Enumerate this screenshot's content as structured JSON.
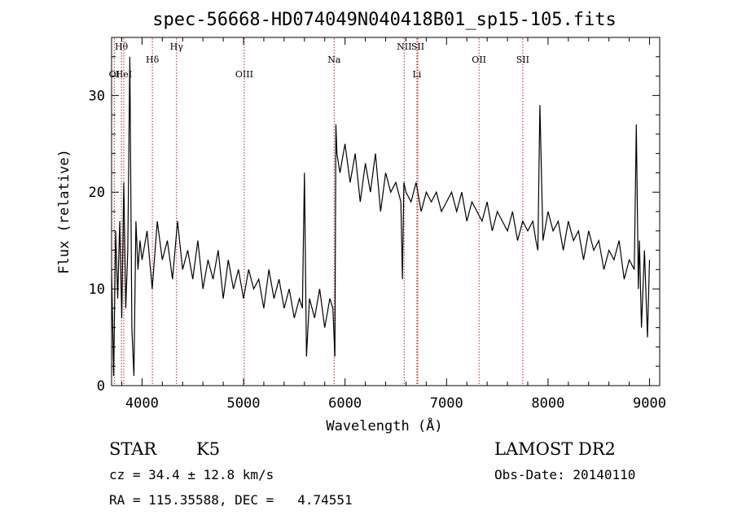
{
  "chart_data": {
    "type": "line",
    "title": "spec-56668-HD074049N040418B01_sp15-105.fits",
    "xlabel": "Wavelength (Å)",
    "ylabel": "Flux (relative)",
    "xlim": [
      3700,
      9100
    ],
    "ylim": [
      0,
      36
    ],
    "xticks": [
      4000,
      5000,
      6000,
      7000,
      8000,
      9000
    ],
    "yticks": [
      0,
      10,
      20,
      30
    ],
    "grid": false,
    "series": [
      {
        "x": [
          3700,
          3720,
          3740,
          3760,
          3780,
          3800,
          3820,
          3840,
          3860,
          3880,
          3900,
          3920,
          3940,
          3960,
          3980,
          4000,
          4050,
          4100,
          4150,
          4200,
          4250,
          4300,
          4350,
          4400,
          4450,
          4500,
          4550,
          4600,
          4650,
          4700,
          4750,
          4800,
          4850,
          4900,
          4950,
          5000,
          5050,
          5100,
          5150,
          5200,
          5250,
          5300,
          5350,
          5400,
          5450,
          5500,
          5550,
          5580,
          5600,
          5620,
          5650,
          5700,
          5750,
          5800,
          5850,
          5880,
          5900,
          5910,
          5920,
          5950,
          6000,
          6050,
          6100,
          6150,
          6200,
          6250,
          6300,
          6350,
          6400,
          6450,
          6500,
          6550,
          6565,
          6580,
          6600,
          6650,
          6700,
          6750,
          6800,
          6850,
          6900,
          6950,
          7000,
          7050,
          7100,
          7150,
          7200,
          7250,
          7300,
          7350,
          7400,
          7450,
          7500,
          7550,
          7600,
          7650,
          7700,
          7750,
          7800,
          7850,
          7880,
          7900,
          7920,
          7950,
          8000,
          8050,
          8100,
          8150,
          8200,
          8250,
          8300,
          8350,
          8400,
          8450,
          8500,
          8550,
          8600,
          8650,
          8700,
          8750,
          8800,
          8850,
          8870,
          8890,
          8900,
          8920,
          8950,
          8980,
          9000
        ],
        "y": [
          12,
          1,
          16,
          9,
          17,
          7,
          21,
          8,
          14,
          34,
          6,
          1,
          17,
          12,
          15,
          13,
          16,
          10,
          17,
          13,
          15,
          11,
          17,
          12,
          14,
          11,
          15,
          10,
          13,
          11,
          14,
          9,
          13,
          10,
          12,
          9,
          12,
          10,
          11,
          8,
          12,
          9,
          11,
          8,
          10,
          7,
          9,
          8,
          22,
          3,
          9,
          7,
          10,
          6,
          9,
          8,
          3,
          27,
          24,
          22,
          25,
          21,
          24,
          19,
          23,
          20,
          24,
          18,
          22,
          20,
          21,
          19,
          11,
          21,
          20,
          19,
          21,
          18,
          20,
          19,
          20,
          18,
          19,
          20,
          18,
          20,
          17,
          19,
          18,
          17,
          19,
          16,
          18,
          17,
          16,
          18,
          15,
          17,
          16,
          17,
          15,
          14,
          29,
          15,
          18,
          16,
          17,
          14,
          17,
          15,
          16,
          13,
          16,
          14,
          15,
          12,
          14,
          13,
          15,
          11,
          13,
          12,
          27,
          10,
          15,
          6,
          14,
          5,
          13
        ]
      }
    ],
    "lines": [
      {
        "name": "Hθ",
        "x": 3797,
        "row": 1
      },
      {
        "name": "OI",
        "x": 3727,
        "row": 3
      },
      {
        "name": "HeI",
        "x": 3820,
        "row": 3
      },
      {
        "name": "Hδ",
        "x": 4102,
        "row": 2
      },
      {
        "name": "Hγ",
        "x": 4340,
        "row": 1
      },
      {
        "name": "OIII",
        "x": 5007,
        "row": 3
      },
      {
        "name": "Na",
        "x": 5893,
        "row": 2
      },
      {
        "name": "NII",
        "x": 6583,
        "row": 1
      },
      {
        "name": "SII",
        "x": 6717,
        "row": 1
      },
      {
        "name": "Li",
        "x": 6708,
        "row": 3
      },
      {
        "name": "OII",
        "x": 7320,
        "row": 2
      },
      {
        "name": "SII",
        "x": 7751,
        "row": 2
      }
    ]
  },
  "info": {
    "class": "STAR",
    "subclass": "K5",
    "survey": "LAMOST DR2",
    "cz": "cz = 34.4 ± 12.8 km/s",
    "obs_date": "Obs-Date: 20140110",
    "radec": "RA = 115.35588, DEC =   4.74551"
  }
}
